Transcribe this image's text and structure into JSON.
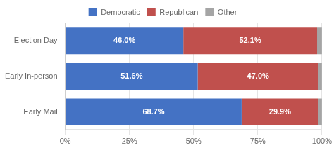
{
  "chart_data": {
    "type": "bar",
    "orientation": "horizontal",
    "stacked": true,
    "categories": [
      "Election Day",
      "Early In-person",
      "Early Mail"
    ],
    "series": [
      {
        "name": "Democratic",
        "color": "#4472C4",
        "values": [
          46.0,
          51.6,
          68.7
        ],
        "value_labels": [
          "46.0%",
          "51.6%",
          "68.7%"
        ],
        "data_labels": true
      },
      {
        "name": "Republican",
        "color": "#C0504D",
        "values": [
          52.1,
          47.0,
          29.9
        ],
        "value_labels": [
          "52.1%",
          "47.0%",
          "29.9%"
        ],
        "data_labels": true
      },
      {
        "name": "Other",
        "color": "#A5A5A5",
        "values": [
          1.9,
          1.4,
          1.4
        ]
      }
    ],
    "xlim": [
      0,
      100
    ],
    "xticks": [
      {
        "value": 0,
        "label": "0%"
      },
      {
        "value": 25,
        "label": "25%"
      },
      {
        "value": 50,
        "label": "50%"
      },
      {
        "value": 75,
        "label": "75%"
      },
      {
        "value": 100,
        "label": "100%"
      }
    ],
    "grid": "x",
    "legend": "top"
  }
}
